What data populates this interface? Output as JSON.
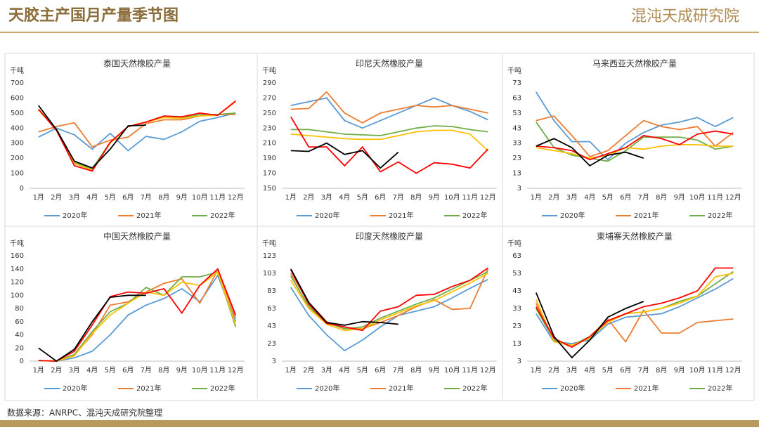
{
  "header": {
    "title": "天胶主产国月产量季节图",
    "logo": "混沌天成研究院"
  },
  "source": "数据来源：ANRPC、混沌天成研究院整理",
  "chart_data": [
    {
      "type": "line",
      "title": "泰国天然橡胶产量",
      "y_unit": "千吨",
      "categories": [
        "1月",
        "2月",
        "3月",
        "4月",
        "5月",
        "6月",
        "7月",
        "8月",
        "9月",
        "10月",
        "11月",
        "12月"
      ],
      "ylim": [
        0,
        700
      ],
      "yticks": [
        0,
        100,
        200,
        300,
        400,
        500,
        600,
        700
      ],
      "series": [
        {
          "name": "2020年",
          "color": "#5b9bd5",
          "values": [
            340,
            400,
            355,
            260,
            365,
            250,
            345,
            325,
            375,
            445,
            470,
            500
          ]
        },
        {
          "name": "2021年",
          "color": "#ed7d31",
          "values": [
            375,
            410,
            435,
            275,
            320,
            340,
            430,
            455,
            455,
            480,
            490,
            490
          ]
        },
        {
          "name": "2022年",
          "color": "#70ad47",
          "values": [
            525,
            395,
            170,
            130,
            305,
            410,
            440,
            480,
            470,
            490,
            490,
            500
          ]
        },
        {
          "color": "#ffc000",
          "values": [
            520,
            390,
            165,
            120,
            300,
            410,
            440,
            470,
            465,
            480,
            485,
            575
          ]
        },
        {
          "color": "#ff0000",
          "values": [
            525,
            385,
            150,
            115,
            305,
            410,
            440,
            480,
            475,
            500,
            485,
            580
          ]
        },
        {
          "color": "#000000",
          "values": [
            550,
            390,
            180,
            135,
            260,
            415,
            420,
            null,
            null,
            null,
            null,
            null
          ]
        }
      ]
    },
    {
      "type": "line",
      "title": "印尼天然橡胶产量",
      "y_unit": "千吨",
      "categories": [
        "1月",
        "2月",
        "3月",
        "4月",
        "5月",
        "6月",
        "7月",
        "8月",
        "9月",
        "10月",
        "11月",
        "12月"
      ],
      "ylim": [
        150,
        290
      ],
      "yticks": [
        150,
        170,
        190,
        210,
        230,
        250,
        270,
        290
      ],
      "series": [
        {
          "name": "2020年",
          "color": "#5b9bd5",
          "values": [
            260,
            265,
            270,
            240,
            230,
            240,
            250,
            260,
            270,
            260,
            252,
            241
          ]
        },
        {
          "name": "2021年",
          "color": "#ed7d31",
          "values": [
            255,
            256,
            278,
            250,
            237,
            250,
            255,
            260,
            258,
            260,
            255,
            250
          ]
        },
        {
          "name": "2022年",
          "color": "#70ad47",
          "values": [
            228,
            228,
            225,
            222,
            221,
            220,
            225,
            230,
            233,
            232,
            228,
            225
          ]
        },
        {
          "color": "#ffc000",
          "values": [
            222,
            220,
            218,
            216,
            215,
            215,
            220,
            225,
            227,
            227,
            222,
            200
          ]
        },
        {
          "color": "#ff0000",
          "values": [
            245,
            205,
            205,
            180,
            205,
            172,
            185,
            170,
            184,
            182,
            177,
            202
          ]
        },
        {
          "color": "#000000",
          "values": [
            200,
            199,
            210,
            195,
            200,
            177,
            198,
            null,
            null,
            null,
            null,
            null
          ]
        }
      ]
    },
    {
      "type": "line",
      "title": "马来西亚天然橡胶产量",
      "y_unit": "千吨",
      "categories": [
        "1月",
        "2月",
        "3月",
        "4月",
        "5月",
        "6月",
        "7月",
        "8月",
        "9月",
        "10月",
        "11月",
        "12月"
      ],
      "ylim": [
        3,
        73
      ],
      "yticks": [
        3,
        13,
        23,
        33,
        43,
        53,
        63,
        73
      ],
      "series": [
        {
          "name": "2020年",
          "color": "#5b9bd5",
          "values": [
            67,
            48,
            34,
            34,
            22,
            33,
            40,
            45,
            47,
            50,
            44,
            50
          ]
        },
        {
          "name": "2021年",
          "color": "#ed7d31",
          "values": [
            48,
            51,
            38,
            24,
            28,
            38,
            48,
            44,
            42,
            44,
            31,
            40
          ]
        },
        {
          "name": "2022年",
          "color": "#70ad47",
          "values": [
            47,
            30,
            25,
            23,
            21,
            28,
            37,
            37,
            37,
            35,
            29,
            31
          ]
        },
        {
          "color": "#ffc000",
          "values": [
            30,
            28,
            26,
            23,
            25,
            30,
            29,
            31,
            32,
            32,
            31,
            31
          ]
        },
        {
          "color": "#ff0000",
          "values": [
            31,
            30,
            28,
            22,
            26,
            30,
            38,
            36,
            32,
            39,
            41,
            39
          ]
        },
        {
          "color": "#000000",
          "values": [
            31,
            36,
            30,
            18,
            25,
            27,
            23,
            null,
            null,
            null,
            null,
            null
          ]
        }
      ]
    },
    {
      "type": "line",
      "title": "中国天然橡胶产量",
      "y_unit": "千吨",
      "categories": [
        "1月",
        "2月",
        "3月",
        "4月",
        "5月",
        "6月",
        "7月",
        "8月",
        "9月",
        "10月",
        "11月",
        "12月"
      ],
      "ylim": [
        0,
        160
      ],
      "yticks": [
        0,
        20,
        40,
        60,
        80,
        100,
        120,
        140,
        160
      ],
      "series": [
        {
          "name": "2020年",
          "color": "#5b9bd5",
          "values": [
            1,
            0,
            5,
            15,
            40,
            70,
            85,
            95,
            110,
            90,
            130,
            60
          ]
        },
        {
          "name": "2021年",
          "color": "#ed7d31",
          "values": [
            1,
            0,
            10,
            40,
            85,
            90,
            105,
            118,
            125,
            88,
            138,
            65
          ]
        },
        {
          "name": "2022年",
          "color": "#70ad47",
          "values": [
            1,
            0,
            10,
            45,
            75,
            88,
            112,
            100,
            128,
            128,
            135,
            52
          ]
        },
        {
          "color": "#ffc000",
          "values": [
            1,
            0,
            8,
            42,
            70,
            88,
            105,
            100,
            120,
            115,
            135,
            55
          ]
        },
        {
          "color": "#ff0000",
          "values": [
            1,
            0,
            15,
            55,
            98,
            105,
            103,
            110,
            73,
            115,
            140,
            70
          ]
        },
        {
          "color": "#000000",
          "values": [
            20,
            0,
            18,
            60,
            97,
            100,
            100,
            null,
            null,
            null,
            null,
            null
          ]
        }
      ]
    },
    {
      "type": "line",
      "title": "印度天然橡胶产量",
      "y_unit": "千吨",
      "categories": [
        "1月",
        "2月",
        "3月",
        "4月",
        "5月",
        "6月",
        "7月",
        "8月",
        "9月",
        "10月",
        "11月",
        "12月"
      ],
      "ylim": [
        3,
        123
      ],
      "yticks": [
        3,
        23,
        43,
        63,
        83,
        103,
        123
      ],
      "series": [
        {
          "name": "2020年",
          "color": "#5b9bd5",
          "values": [
            87,
            55,
            33,
            15,
            27,
            42,
            55,
            60,
            65,
            75,
            86,
            96
          ]
        },
        {
          "name": "2021年",
          "color": "#ed7d31",
          "values": [
            103,
            70,
            48,
            40,
            40,
            47,
            55,
            65,
            73,
            62,
            63,
            108
          ]
        },
        {
          "name": "2022年",
          "color": "#70ad47",
          "values": [
            100,
            65,
            47,
            40,
            42,
            52,
            60,
            68,
            75,
            85,
            95,
            105
          ]
        },
        {
          "color": "#ffc000",
          "values": [
            95,
            63,
            45,
            38,
            40,
            50,
            58,
            66,
            72,
            82,
            92,
            103
          ]
        },
        {
          "color": "#ff0000",
          "values": [
            107,
            68,
            46,
            42,
            38,
            60,
            65,
            78,
            79,
            88,
            95,
            109
          ]
        },
        {
          "color": "#000000",
          "values": [
            108,
            70,
            47,
            44,
            48,
            47,
            45,
            null,
            null,
            null,
            null,
            null
          ]
        }
      ]
    },
    {
      "type": "line",
      "title": "柬埔寨天然橡胶产量",
      "y_unit": "千吨",
      "categories": [
        "1月",
        "2月",
        "3月",
        "4月",
        "5月",
        "6月",
        "7月",
        "8月",
        "9月",
        "10月",
        "11月",
        "12月"
      ],
      "ylim": [
        3,
        63
      ],
      "yticks": [
        3,
        13,
        23,
        33,
        43,
        53,
        63
      ],
      "series": [
        {
          "name": "2020年",
          "color": "#5b9bd5",
          "values": [
            30,
            14,
            13,
            15,
            24,
            28,
            29,
            30,
            34,
            39,
            44,
            50
          ]
        },
        {
          "name": "2021年",
          "color": "#ed7d31",
          "values": [
            36,
            15,
            11,
            17,
            27,
            14,
            32,
            19,
            19,
            25,
            26,
            27
          ]
        },
        {
          "name": "2022年",
          "color": "#70ad47",
          "values": [
            33,
            15,
            12,
            17,
            26,
            30,
            31,
            33,
            37,
            40,
            47,
            54
          ]
        },
        {
          "color": "#ffc000",
          "values": [
            38,
            14,
            12,
            16,
            25,
            30,
            31,
            33,
            36,
            40,
            51,
            53
          ]
        },
        {
          "color": "#ff0000",
          "values": [
            34,
            16,
            11,
            17,
            26,
            30,
            34,
            36,
            39,
            43,
            56,
            56
          ]
        },
        {
          "color": "#000000",
          "values": [
            42,
            17,
            5,
            15,
            28,
            33,
            37,
            null,
            null,
            null,
            null,
            null
          ]
        }
      ]
    }
  ]
}
